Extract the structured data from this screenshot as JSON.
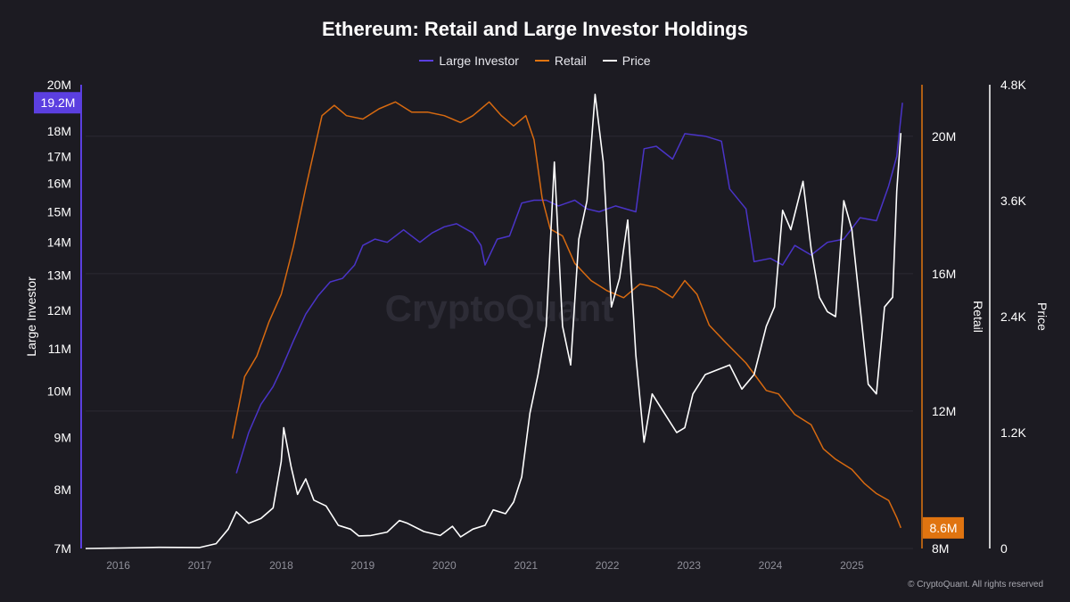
{
  "chart_data": {
    "type": "line",
    "title": "Ethereum: Retail and Large Investor Holdings",
    "legend_position": "top-center",
    "watermark": "CryptoQuant",
    "copyright": "© CryptoQuant. All rights reserved",
    "grid": true,
    "x_ticks": [
      "2016",
      "2017",
      "2018",
      "2019",
      "2020",
      "2021",
      "2022",
      "2023",
      "2024",
      "2025"
    ],
    "axes": {
      "large_investor": {
        "label": "Large Investor",
        "scale": "log",
        "ylim": [
          7,
          20
        ],
        "tick_values": [
          7,
          8,
          9,
          10,
          11,
          12,
          13,
          14,
          15,
          16,
          17,
          18,
          20
        ],
        "ticks": [
          "7M",
          "8M",
          "9M",
          "10M",
          "11M",
          "12M",
          "13M",
          "14M",
          "15M",
          "16M",
          "17M",
          "18M",
          "20M"
        ],
        "current_label": "19.2M",
        "color": "#5b3fe0"
      },
      "retail": {
        "label": "Retail",
        "scale": "linear",
        "ylim": [
          8,
          21.5
        ],
        "tick_values": [
          8,
          12,
          16,
          20
        ],
        "ticks": [
          "8M",
          "12M",
          "16M",
          "20M"
        ],
        "current_label": "8.6M",
        "color": "#e07410"
      },
      "price": {
        "label": "Price",
        "scale": "linear",
        "ylim": [
          0,
          4800
        ],
        "tick_values": [
          0,
          1200,
          2400,
          3600,
          4800
        ],
        "ticks": [
          "0",
          "1.2K",
          "2.4K",
          "3.6K",
          "4.8K"
        ],
        "color": "#ffffff"
      }
    },
    "series": [
      {
        "name": "Large Investor",
        "axis": "large_investor",
        "color": "#4a34c8",
        "points": [
          [
            2017.45,
            8.3
          ],
          [
            2017.6,
            9.1
          ],
          [
            2017.75,
            9.7
          ],
          [
            2017.9,
            10.1
          ],
          [
            2018.0,
            10.5
          ],
          [
            2018.15,
            11.2
          ],
          [
            2018.3,
            11.9
          ],
          [
            2018.45,
            12.4
          ],
          [
            2018.6,
            12.8
          ],
          [
            2018.75,
            12.9
          ],
          [
            2018.9,
            13.3
          ],
          [
            2019.0,
            13.9
          ],
          [
            2019.15,
            14.1
          ],
          [
            2019.3,
            14.0
          ],
          [
            2019.5,
            14.4
          ],
          [
            2019.7,
            14.0
          ],
          [
            2019.85,
            14.3
          ],
          [
            2020.0,
            14.5
          ],
          [
            2020.15,
            14.6
          ],
          [
            2020.35,
            14.3
          ],
          [
            2020.45,
            13.9
          ],
          [
            2020.5,
            13.3
          ],
          [
            2020.65,
            14.1
          ],
          [
            2020.8,
            14.2
          ],
          [
            2020.95,
            15.3
          ],
          [
            2021.1,
            15.4
          ],
          [
            2021.25,
            15.4
          ],
          [
            2021.4,
            15.2
          ],
          [
            2021.6,
            15.4
          ],
          [
            2021.75,
            15.1
          ],
          [
            2021.9,
            15.0
          ],
          [
            2022.1,
            15.2
          ],
          [
            2022.35,
            15.0
          ],
          [
            2022.45,
            17.3
          ],
          [
            2022.6,
            17.4
          ],
          [
            2022.8,
            16.9
          ],
          [
            2022.95,
            17.9
          ],
          [
            2023.2,
            17.8
          ],
          [
            2023.4,
            17.6
          ],
          [
            2023.5,
            15.8
          ],
          [
            2023.7,
            15.1
          ],
          [
            2023.8,
            13.4
          ],
          [
            2024.0,
            13.5
          ],
          [
            2024.15,
            13.3
          ],
          [
            2024.3,
            13.9
          ],
          [
            2024.5,
            13.6
          ],
          [
            2024.7,
            14.0
          ],
          [
            2024.9,
            14.1
          ],
          [
            2025.1,
            14.8
          ],
          [
            2025.3,
            14.7
          ],
          [
            2025.45,
            15.9
          ],
          [
            2025.55,
            17.0
          ],
          [
            2025.62,
            19.2
          ]
        ]
      },
      {
        "name": "Retail",
        "axis": "retail",
        "color": "#d86a10",
        "points": [
          [
            2017.4,
            11.2
          ],
          [
            2017.55,
            13.0
          ],
          [
            2017.7,
            13.6
          ],
          [
            2017.85,
            14.6
          ],
          [
            2018.0,
            15.4
          ],
          [
            2018.15,
            16.8
          ],
          [
            2018.3,
            18.5
          ],
          [
            2018.5,
            20.6
          ],
          [
            2018.65,
            20.9
          ],
          [
            2018.8,
            20.6
          ],
          [
            2019.0,
            20.5
          ],
          [
            2019.2,
            20.8
          ],
          [
            2019.4,
            21.0
          ],
          [
            2019.6,
            20.7
          ],
          [
            2019.8,
            20.7
          ],
          [
            2020.0,
            20.6
          ],
          [
            2020.2,
            20.4
          ],
          [
            2020.35,
            20.6
          ],
          [
            2020.55,
            21.0
          ],
          [
            2020.7,
            20.6
          ],
          [
            2020.85,
            20.3
          ],
          [
            2021.0,
            20.6
          ],
          [
            2021.1,
            19.9
          ],
          [
            2021.2,
            18.2
          ],
          [
            2021.3,
            17.3
          ],
          [
            2021.45,
            17.1
          ],
          [
            2021.6,
            16.3
          ],
          [
            2021.8,
            15.8
          ],
          [
            2022.0,
            15.5
          ],
          [
            2022.2,
            15.3
          ],
          [
            2022.4,
            15.7
          ],
          [
            2022.6,
            15.6
          ],
          [
            2022.8,
            15.3
          ],
          [
            2022.95,
            15.8
          ],
          [
            2023.1,
            15.4
          ],
          [
            2023.25,
            14.5
          ],
          [
            2023.45,
            14.0
          ],
          [
            2023.7,
            13.4
          ],
          [
            2023.95,
            12.6
          ],
          [
            2024.1,
            12.5
          ],
          [
            2024.3,
            11.9
          ],
          [
            2024.5,
            11.6
          ],
          [
            2024.65,
            10.9
          ],
          [
            2024.8,
            10.6
          ],
          [
            2025.0,
            10.3
          ],
          [
            2025.15,
            9.9
          ],
          [
            2025.3,
            9.6
          ],
          [
            2025.45,
            9.4
          ],
          [
            2025.55,
            8.9
          ],
          [
            2025.6,
            8.6
          ]
        ]
      },
      {
        "name": "Price",
        "axis": "price",
        "color": "#ffffff",
        "points": [
          [
            2015.6,
            0
          ],
          [
            2016.0,
            5
          ],
          [
            2016.5,
            12
          ],
          [
            2017.0,
            10
          ],
          [
            2017.2,
            50
          ],
          [
            2017.35,
            200
          ],
          [
            2017.45,
            380
          ],
          [
            2017.6,
            260
          ],
          [
            2017.75,
            310
          ],
          [
            2017.9,
            420
          ],
          [
            2018.0,
            900
          ],
          [
            2018.03,
            1250
          ],
          [
            2018.12,
            850
          ],
          [
            2018.2,
            560
          ],
          [
            2018.3,
            720
          ],
          [
            2018.4,
            500
          ],
          [
            2018.55,
            440
          ],
          [
            2018.7,
            240
          ],
          [
            2018.85,
            200
          ],
          [
            2018.95,
            130
          ],
          [
            2019.1,
            135
          ],
          [
            2019.3,
            170
          ],
          [
            2019.45,
            290
          ],
          [
            2019.55,
            260
          ],
          [
            2019.75,
            175
          ],
          [
            2019.95,
            135
          ],
          [
            2020.1,
            230
          ],
          [
            2020.2,
            120
          ],
          [
            2020.35,
            200
          ],
          [
            2020.5,
            240
          ],
          [
            2020.6,
            400
          ],
          [
            2020.75,
            360
          ],
          [
            2020.85,
            480
          ],
          [
            2020.95,
            740
          ],
          [
            2021.05,
            1400
          ],
          [
            2021.15,
            1800
          ],
          [
            2021.25,
            2300
          ],
          [
            2021.35,
            4000
          ],
          [
            2021.45,
            2300
          ],
          [
            2021.55,
            1900
          ],
          [
            2021.65,
            3200
          ],
          [
            2021.75,
            3600
          ],
          [
            2021.85,
            4700
          ],
          [
            2021.95,
            4000
          ],
          [
            2022.05,
            2500
          ],
          [
            2022.15,
            2800
          ],
          [
            2022.25,
            3400
          ],
          [
            2022.35,
            2000
          ],
          [
            2022.45,
            1100
          ],
          [
            2022.55,
            1600
          ],
          [
            2022.7,
            1400
          ],
          [
            2022.85,
            1200
          ],
          [
            2022.95,
            1250
          ],
          [
            2023.05,
            1600
          ],
          [
            2023.2,
            1800
          ],
          [
            2023.35,
            1850
          ],
          [
            2023.5,
            1900
          ],
          [
            2023.65,
            1650
          ],
          [
            2023.8,
            1800
          ],
          [
            2023.95,
            2300
          ],
          [
            2024.05,
            2500
          ],
          [
            2024.15,
            3500
          ],
          [
            2024.25,
            3300
          ],
          [
            2024.4,
            3800
          ],
          [
            2024.5,
            3100
          ],
          [
            2024.6,
            2600
          ],
          [
            2024.7,
            2450
          ],
          [
            2024.8,
            2400
          ],
          [
            2024.9,
            3600
          ],
          [
            2025.0,
            3300
          ],
          [
            2025.1,
            2500
          ],
          [
            2025.2,
            1700
          ],
          [
            2025.3,
            1600
          ],
          [
            2025.4,
            2500
          ],
          [
            2025.5,
            2600
          ],
          [
            2025.55,
            3700
          ],
          [
            2025.6,
            4300
          ]
        ]
      }
    ]
  }
}
